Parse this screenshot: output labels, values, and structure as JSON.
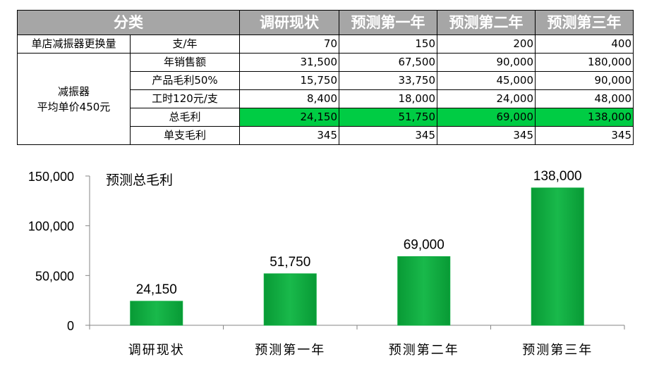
{
  "table": {
    "headers": [
      "分类",
      "调研现状",
      "预测第一年",
      "预测第二年",
      "预测第三年"
    ],
    "rows": [
      {
        "group": "单店减振器更换量",
        "label": "支/年",
        "values": [
          "70",
          "150",
          "200",
          "400"
        ]
      },
      {
        "label": "年销售额",
        "values": [
          "31,500",
          "67,500",
          "90,000",
          "180,000"
        ]
      },
      {
        "label": "产品毛利50%",
        "values": [
          "15,750",
          "33,750",
          "45,000",
          "90,000"
        ]
      },
      {
        "label": "工时120元/支",
        "values": [
          "8,400",
          "18,000",
          "24,000",
          "48,000"
        ]
      },
      {
        "label": "总毛利",
        "values": [
          "24,150",
          "51,750",
          "69,000",
          "138,000"
        ],
        "highlight": true
      },
      {
        "label": "单支毛利",
        "values": [
          "345",
          "345",
          "345",
          "345"
        ]
      }
    ],
    "merged_group_line1": "减振器",
    "merged_group_line2": "平均单价450元",
    "highlight_color": "#00cc44"
  },
  "chart_data": {
    "type": "bar",
    "title": "预测总毛利",
    "categories": [
      "调研现状",
      "预测第一年",
      "预测第二年",
      "预测第三年"
    ],
    "values": [
      24150,
      51750,
      69000,
      138000
    ],
    "data_labels": [
      "24,150",
      "51,750",
      "69,000",
      "138,000"
    ],
    "ylim": [
      0,
      150000
    ],
    "yticks": [
      0,
      50000,
      100000,
      150000
    ],
    "ytick_labels": [
      "0",
      "50,000",
      "100,000",
      "150,000"
    ],
    "grid": false,
    "legend": "none",
    "bar_color": "#0cab3e"
  }
}
